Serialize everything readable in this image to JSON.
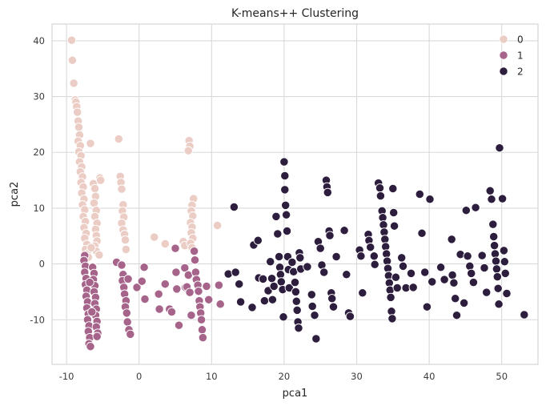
{
  "chart_data": {
    "type": "scatter",
    "title": "K-means++ Clustering",
    "xlabel": "pca1",
    "ylabel": "pca2",
    "xlim": [
      -12,
      55
    ],
    "ylim": [
      -18,
      43
    ],
    "xticks": [
      -10,
      0,
      10,
      20,
      30,
      40,
      50
    ],
    "yticks": [
      -10,
      0,
      10,
      20,
      30,
      40
    ],
    "grid": true,
    "legend_position": "top-right",
    "series": [
      {
        "name": "0",
        "color": "#ebcdc5",
        "points": [
          [
            -9.3,
            40.1
          ],
          [
            -9.2,
            36.5
          ],
          [
            -9.0,
            32.4
          ],
          [
            -8.8,
            29.4
          ],
          [
            -8.7,
            29.0
          ],
          [
            -8.6,
            28.2
          ],
          [
            -8.5,
            27.2
          ],
          [
            -8.4,
            25.6
          ],
          [
            -8.3,
            24.5
          ],
          [
            -8.2,
            23.1
          ],
          [
            -8.4,
            22.0
          ],
          [
            -8.1,
            21.2
          ],
          [
            -8.3,
            20.1
          ],
          [
            -8.0,
            19.4
          ],
          [
            -8.2,
            18.3
          ],
          [
            -7.9,
            17.4
          ],
          [
            -8.1,
            16.5
          ],
          [
            -7.8,
            15.6
          ],
          [
            -8.0,
            14.6
          ],
          [
            -7.7,
            13.8
          ],
          [
            -7.9,
            12.7
          ],
          [
            -7.6,
            11.6
          ],
          [
            -7.8,
            10.6
          ],
          [
            -7.5,
            9.7
          ],
          [
            -7.7,
            8.5
          ],
          [
            -7.4,
            7.6
          ],
          [
            -7.6,
            6.5
          ],
          [
            -7.3,
            5.5
          ],
          [
            -7.5,
            4.6
          ],
          [
            -7.2,
            3.5
          ],
          [
            -7.4,
            2.6
          ],
          [
            -7.1,
            1.8
          ],
          [
            -6.7,
            21.6
          ],
          [
            -6.3,
            14.4
          ],
          [
            -6.1,
            13.5
          ],
          [
            -6.0,
            12.1
          ],
          [
            -6.2,
            10.9
          ],
          [
            -5.9,
            9.6
          ],
          [
            -6.1,
            8.5
          ],
          [
            -5.8,
            7.3
          ],
          [
            -6.0,
            6.2
          ],
          [
            -5.9,
            5.1
          ],
          [
            -5.8,
            4.1
          ],
          [
            -6.1,
            3.2
          ],
          [
            -5.9,
            2.3
          ],
          [
            -5.4,
            15.4
          ],
          [
            -5.3,
            15.0
          ],
          [
            -2.8,
            22.4
          ],
          [
            -2.6,
            15.7
          ],
          [
            -2.5,
            14.6
          ],
          [
            -2.4,
            13.4
          ],
          [
            -2.2,
            10.6
          ],
          [
            -2.3,
            9.5
          ],
          [
            -2.1,
            8.4
          ],
          [
            -2.4,
            7.3
          ],
          [
            -2.2,
            6.1
          ],
          [
            -2.0,
            5.3
          ],
          [
            -1.9,
            4.3
          ],
          [
            -1.8,
            2.6
          ],
          [
            2.1,
            4.8
          ],
          [
            3.6,
            3.6
          ],
          [
            6.1,
            4.0
          ],
          [
            6.3,
            3.3
          ],
          [
            6.9,
            22.1
          ],
          [
            7.0,
            21.1
          ],
          [
            6.8,
            20.3
          ],
          [
            7.5,
            11.7
          ],
          [
            7.3,
            10.5
          ],
          [
            7.2,
            9.5
          ],
          [
            7.4,
            8.6
          ],
          [
            7.1,
            7.4
          ],
          [
            7.3,
            6.6
          ],
          [
            7.2,
            5.6
          ],
          [
            7.4,
            4.6
          ],
          [
            7.1,
            3.7
          ],
          [
            7.3,
            2.9
          ],
          [
            10.8,
            6.9
          ],
          [
            -7.0,
            1.2
          ],
          [
            -6.6,
            2.9
          ],
          [
            -5.5,
            1.6
          ]
        ]
      },
      {
        "name": "1",
        "color": "#a6648a",
        "points": [
          [
            -7.5,
            1.5
          ],
          [
            -7.6,
            0.6
          ],
          [
            -7.4,
            -0.4
          ],
          [
            -7.5,
            -1.5
          ],
          [
            -7.3,
            -2.6
          ],
          [
            -7.4,
            -3.7
          ],
          [
            -7.2,
            -4.7
          ],
          [
            -7.3,
            -5.8
          ],
          [
            -7.1,
            -6.8
          ],
          [
            -7.2,
            -7.9
          ],
          [
            -7.0,
            -9.0
          ],
          [
            -7.1,
            -10.0
          ],
          [
            -6.9,
            -11.1
          ],
          [
            -7.0,
            -12.1
          ],
          [
            -6.8,
            -13.2
          ],
          [
            -6.9,
            -14.3
          ],
          [
            -6.7,
            -14.8
          ],
          [
            -6.4,
            -0.6
          ],
          [
            -6.2,
            -1.7
          ],
          [
            -6.3,
            -2.8
          ],
          [
            -6.1,
            -3.9
          ],
          [
            -6.2,
            -5.0
          ],
          [
            -6.0,
            -6.0
          ],
          [
            -6.1,
            -7.1
          ],
          [
            -5.9,
            -8.1
          ],
          [
            -6.0,
            -9.2
          ],
          [
            -5.8,
            -10.3
          ],
          [
            -5.9,
            -11.3
          ],
          [
            -5.7,
            -12.4
          ],
          [
            -5.8,
            -13.0
          ],
          [
            -3.1,
            0.3
          ],
          [
            -2.4,
            -0.2
          ],
          [
            -2.2,
            -1.9
          ],
          [
            -2.3,
            -3.0
          ],
          [
            -2.1,
            -4.2
          ],
          [
            -2.0,
            -5.4
          ],
          [
            -1.8,
            -6.6
          ],
          [
            -1.9,
            -7.7
          ],
          [
            -1.7,
            -8.8
          ],
          [
            -1.6,
            -10.4
          ],
          [
            -1.4,
            -11.8
          ],
          [
            -1.2,
            -12.6
          ],
          [
            -0.3,
            -4.2
          ],
          [
            0.4,
            -3.1
          ],
          [
            0.7,
            -0.6
          ],
          [
            0.8,
            -6.3
          ],
          [
            2.7,
            -5.4
          ],
          [
            2.8,
            -8.1
          ],
          [
            3.6,
            -3.6
          ],
          [
            4.2,
            -8.1
          ],
          [
            4.5,
            -8.6
          ],
          [
            5.0,
            2.8
          ],
          [
            5.1,
            -1.5
          ],
          [
            5.2,
            -4.5
          ],
          [
            5.5,
            -11.0
          ],
          [
            6.3,
            -0.7
          ],
          [
            6.4,
            -4.2
          ],
          [
            6.6,
            -4.1
          ],
          [
            6.8,
            -2.0
          ],
          [
            7.0,
            -5.1
          ],
          [
            7.2,
            -9.2
          ],
          [
            7.6,
            2.3
          ],
          [
            7.7,
            0.7
          ],
          [
            7.8,
            -1.5
          ],
          [
            7.9,
            -2.8
          ],
          [
            8.1,
            -3.8
          ],
          [
            8.2,
            -4.9
          ],
          [
            8.3,
            -6.6
          ],
          [
            8.4,
            -7.7
          ],
          [
            8.5,
            -8.8
          ],
          [
            8.6,
            -10.0
          ],
          [
            8.7,
            -11.8
          ],
          [
            8.8,
            -13.2
          ],
          [
            9.3,
            -4.0
          ],
          [
            9.6,
            -6.4
          ],
          [
            11.0,
            -3.8
          ],
          [
            11.2,
            -7.2
          ],
          [
            -6.8,
            -3.3
          ],
          [
            -6.5,
            -8.6
          ],
          [
            -1.5,
            -2.7
          ]
        ]
      },
      {
        "name": "2",
        "color": "#2d1e3e",
        "points": [
          [
            12.3,
            -1.8
          ],
          [
            13.1,
            10.2
          ],
          [
            13.3,
            -1.5
          ],
          [
            13.8,
            -3.6
          ],
          [
            14.0,
            -6.8
          ],
          [
            15.6,
            -7.8
          ],
          [
            15.8,
            3.4
          ],
          [
            16.4,
            4.2
          ],
          [
            16.5,
            -2.5
          ],
          [
            17.1,
            -2.7
          ],
          [
            17.3,
            -6.6
          ],
          [
            17.8,
            -4.8
          ],
          [
            18.1,
            0.4
          ],
          [
            18.3,
            -2.6
          ],
          [
            18.4,
            -6.4
          ],
          [
            18.9,
            8.5
          ],
          [
            19.1,
            5.4
          ],
          [
            19.3,
            1.3
          ],
          [
            19.4,
            -0.6
          ],
          [
            19.5,
            -1.9
          ],
          [
            19.6,
            -3.2
          ],
          [
            19.8,
            -4.6
          ],
          [
            19.9,
            -9.5
          ],
          [
            20.0,
            18.3
          ],
          [
            20.1,
            15.8
          ],
          [
            20.1,
            13.3
          ],
          [
            20.2,
            10.5
          ],
          [
            20.3,
            8.8
          ],
          [
            20.4,
            5.9
          ],
          [
            20.5,
            1.3
          ],
          [
            20.6,
            -1.0
          ],
          [
            20.7,
            -4.3
          ],
          [
            21.1,
            0.3
          ],
          [
            21.3,
            -1.4
          ],
          [
            21.5,
            -3.3
          ],
          [
            21.6,
            -5.0
          ],
          [
            21.7,
            -6.7
          ],
          [
            21.8,
            -8.3
          ],
          [
            21.9,
            -10.4
          ],
          [
            22.0,
            -11.5
          ],
          [
            22.1,
            2.0
          ],
          [
            22.2,
            1.1
          ],
          [
            22.3,
            -0.9
          ],
          [
            23.2,
            -0.5
          ],
          [
            23.8,
            -5.5
          ],
          [
            23.9,
            -7.6
          ],
          [
            24.2,
            -9.2
          ],
          [
            24.4,
            -13.4
          ],
          [
            24.7,
            4.0
          ],
          [
            25.0,
            2.8
          ],
          [
            25.2,
            -0.2
          ],
          [
            25.5,
            -1.5
          ],
          [
            25.8,
            15.0
          ],
          [
            25.9,
            13.8
          ],
          [
            26.0,
            12.8
          ],
          [
            26.2,
            5.9
          ],
          [
            26.3,
            5.1
          ],
          [
            26.5,
            -5.2
          ],
          [
            26.6,
            -6.2
          ],
          [
            26.8,
            -7.7
          ],
          [
            27.2,
            1.3
          ],
          [
            28.3,
            6.0
          ],
          [
            28.6,
            -1.9
          ],
          [
            28.9,
            -8.8
          ],
          [
            29.1,
            -9.4
          ],
          [
            30.4,
            2.5
          ],
          [
            30.6,
            1.4
          ],
          [
            31.6,
            5.3
          ],
          [
            31.7,
            4.2
          ],
          [
            31.9,
            3.0
          ],
          [
            32.4,
            1.4
          ],
          [
            32.5,
            -0.1
          ],
          [
            33.0,
            14.5
          ],
          [
            33.2,
            13.6
          ],
          [
            33.3,
            12.2
          ],
          [
            33.5,
            9.5
          ],
          [
            33.6,
            8.3
          ],
          [
            33.7,
            7.0
          ],
          [
            33.8,
            5.7
          ],
          [
            33.9,
            4.4
          ],
          [
            34.0,
            3.1
          ],
          [
            34.1,
            1.8
          ],
          [
            34.2,
            0.5
          ],
          [
            34.3,
            -0.8
          ],
          [
            34.4,
            -2.1
          ],
          [
            34.5,
            -3.4
          ],
          [
            34.6,
            -4.7
          ],
          [
            34.7,
            -6.0
          ],
          [
            34.8,
            -8.5
          ],
          [
            34.9,
            -9.8
          ],
          [
            35.0,
            13.5
          ],
          [
            35.1,
            9.2
          ],
          [
            35.2,
            6.8
          ],
          [
            35.4,
            -2.4
          ],
          [
            35.6,
            -4.3
          ],
          [
            36.2,
            1.1
          ],
          [
            36.4,
            -0.4
          ],
          [
            36.8,
            -4.3
          ],
          [
            37.5,
            -1.7
          ],
          [
            37.8,
            -4.2
          ],
          [
            38.7,
            12.5
          ],
          [
            39.0,
            5.5
          ],
          [
            39.4,
            -1.5
          ],
          [
            39.7,
            -7.7
          ],
          [
            40.1,
            11.6
          ],
          [
            40.4,
            -3.2
          ],
          [
            41.6,
            -0.6
          ],
          [
            42.1,
            -2.8
          ],
          [
            43.1,
            4.4
          ],
          [
            43.2,
            -2.0
          ],
          [
            43.4,
            -3.4
          ],
          [
            43.6,
            -6.2
          ],
          [
            43.8,
            -9.2
          ],
          [
            44.3,
            1.7
          ],
          [
            45.1,
            9.6
          ],
          [
            45.3,
            1.4
          ],
          [
            45.6,
            -0.4
          ],
          [
            45.8,
            -1.7
          ],
          [
            46.1,
            -3.3
          ],
          [
            46.4,
            10.1
          ],
          [
            47.3,
            1.5
          ],
          [
            47.6,
            -0.7
          ],
          [
            47.9,
            -5.1
          ],
          [
            48.4,
            13.1
          ],
          [
            48.6,
            11.6
          ],
          [
            48.8,
            7.1
          ],
          [
            48.9,
            4.9
          ],
          [
            49.0,
            3.3
          ],
          [
            49.1,
            1.8
          ],
          [
            49.2,
            0.5
          ],
          [
            49.3,
            -0.9
          ],
          [
            49.4,
            -2.3
          ],
          [
            49.5,
            -4.4
          ],
          [
            49.6,
            -7.2
          ],
          [
            49.7,
            20.8
          ],
          [
            50.1,
            11.7
          ],
          [
            50.3,
            2.4
          ],
          [
            50.4,
            0.4
          ],
          [
            50.5,
            -1.7
          ],
          [
            50.7,
            -5.3
          ],
          [
            53.1,
            -9.1
          ],
          [
            18.6,
            -4.0
          ],
          [
            30.8,
            -5.2
          ],
          [
            44.8,
            -7.0
          ]
        ]
      }
    ]
  }
}
